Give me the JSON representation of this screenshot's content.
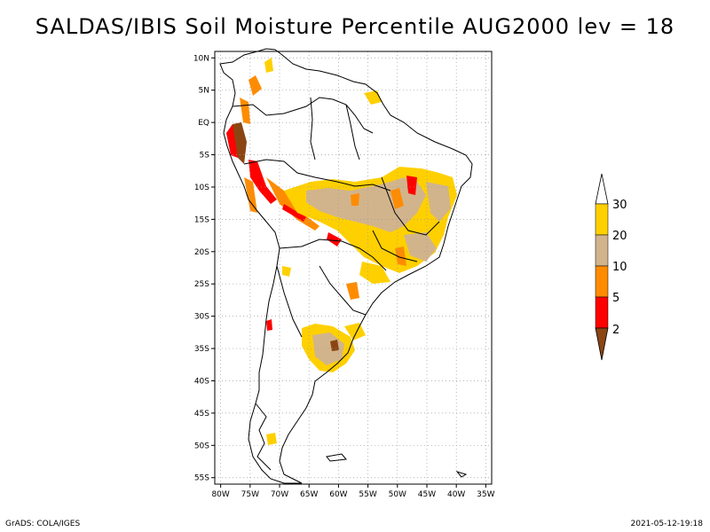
{
  "title": "SALDAS/IBIS Soil Moisture Percentile AUG2000 lev = 18",
  "footer": {
    "left": "GrADS: COLA/IGES",
    "right": "2021-05-12-19:18"
  },
  "axes": {
    "lat_ticks": [
      "10N",
      "5N",
      "EQ",
      "5S",
      "10S",
      "15S",
      "20S",
      "25S",
      "30S",
      "35S",
      "40S",
      "45S",
      "50S",
      "55S"
    ],
    "lon_ticks": [
      "80W",
      "75W",
      "70W",
      "65W",
      "60W",
      "55W",
      "50W",
      "45W",
      "40W",
      "35W"
    ],
    "lat_range": [
      11,
      -56
    ],
    "lon_range": [
      -81,
      -34
    ],
    "grid": true,
    "grid_style": "dotted"
  },
  "colorbar": {
    "placement": "right",
    "levels": [
      "2",
      "5",
      "10",
      "20",
      "30"
    ],
    "colors": [
      "#8b4513",
      "#ff0000",
      "#ff8c00",
      "#d2b48c",
      "#ffd000",
      "#ffffff"
    ]
  },
  "colors": {
    "percentile_lt2": "#8b4513",
    "percentile_2_5": "#ff0000",
    "percentile_5_10": "#ff8c00",
    "percentile_10_20": "#d2b48c",
    "percentile_20_30": "#ffd000"
  }
}
